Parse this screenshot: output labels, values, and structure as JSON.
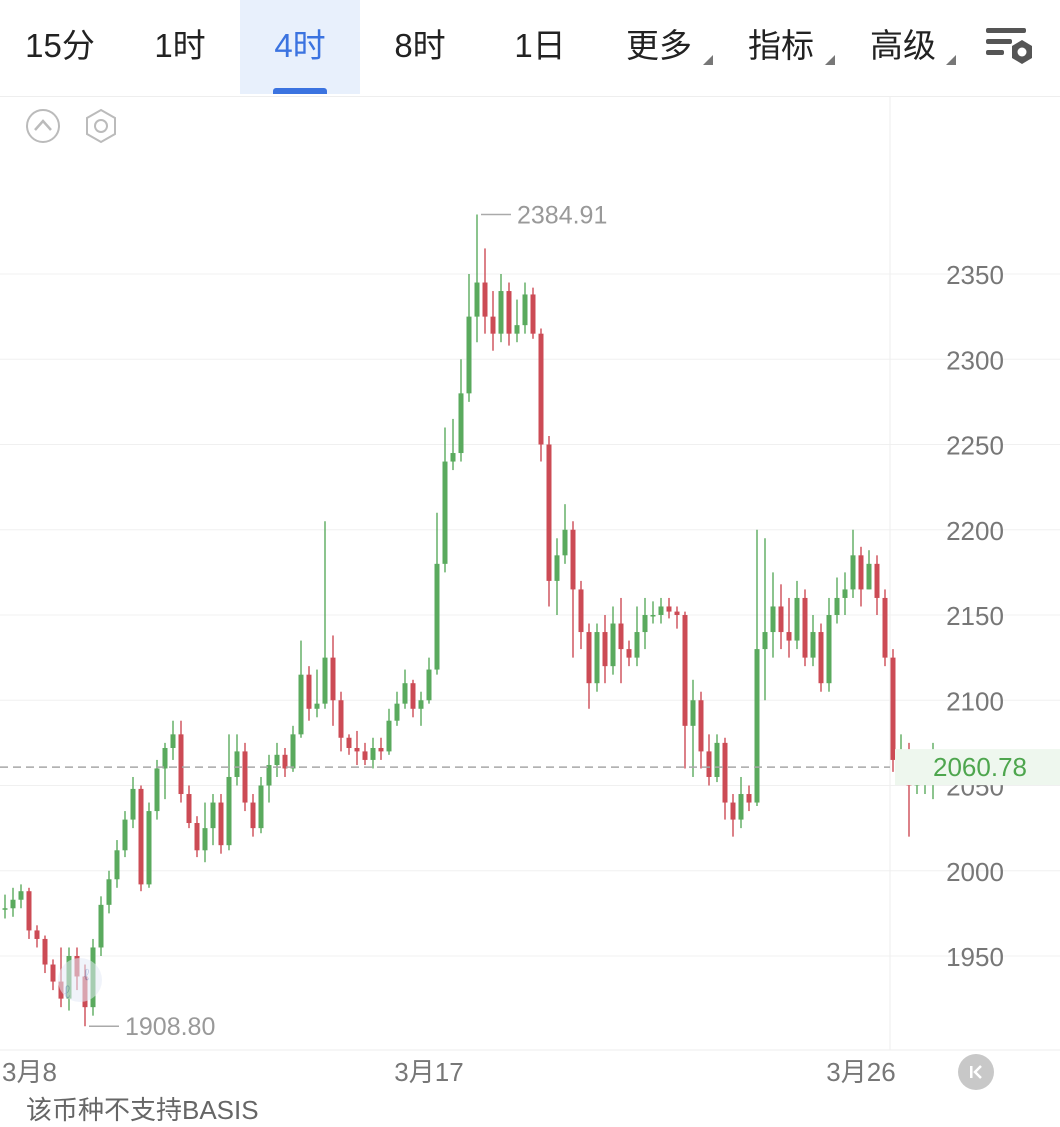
{
  "tabs": [
    {
      "label": "15分",
      "active": false
    },
    {
      "label": "1时",
      "active": false
    },
    {
      "label": "4时",
      "active": true
    },
    {
      "label": "8时",
      "active": false
    },
    {
      "label": "1日",
      "active": false
    },
    {
      "label": "更多",
      "active": false,
      "dropdown": true
    },
    {
      "label": "指标",
      "active": false,
      "dropdown": true
    },
    {
      "label": "高级",
      "active": false,
      "dropdown": true
    }
  ],
  "icons": {
    "settings": "list-settings-icon",
    "collapse": "chevron-up-circle-icon",
    "hexagon": "hexagon-settings-icon",
    "rewind": "skip-back-icon",
    "brand_mark": "watermark-logo-icon"
  },
  "colors": {
    "up": "#5aaa5e",
    "down": "#cc4b55",
    "active_tab": "#3b73e0",
    "current_price": "#4ea64e"
  },
  "bottom_text": "该币种不支持BASIS",
  "chart_data": {
    "type": "candlestick",
    "title": "",
    "interval": "4时",
    "y_ticks": [
      1950,
      2000,
      2050,
      2100,
      2150,
      2200,
      2250,
      2300,
      2350
    ],
    "x_ticks": [
      {
        "label": "3月8",
        "index": 0
      },
      {
        "label": "3月17",
        "index": 53
      },
      {
        "label": "3月26",
        "index": 107
      }
    ],
    "high_label": "2384.91",
    "low_label": "1908.80",
    "current_price": 2060.78,
    "current_price_label": "2060.78",
    "ylim": [
      1893,
      2421
    ],
    "grid": true,
    "candles": [
      [
        1978,
        1978,
        1986,
        1972
      ],
      [
        1978,
        1983,
        1990,
        1973
      ],
      [
        1983,
        1988,
        1992,
        1978
      ],
      [
        1988,
        1965,
        1990,
        1960
      ],
      [
        1965,
        1960,
        1968,
        1955
      ],
      [
        1960,
        1945,
        1962,
        1940
      ],
      [
        1945,
        1935,
        1948,
        1930
      ],
      [
        1935,
        1925,
        1955,
        1920
      ],
      [
        1925,
        1950,
        1955,
        1918
      ],
      [
        1950,
        1938,
        1955,
        1930
      ],
      [
        1938,
        1920,
        1945,
        1908.8
      ],
      [
        1920,
        1955,
        1960,
        1915
      ],
      [
        1955,
        1980,
        1985,
        1950
      ],
      [
        1980,
        1995,
        2000,
        1975
      ],
      [
        1995,
        2012,
        2018,
        1990
      ],
      [
        2012,
        2030,
        2035,
        2008
      ],
      [
        2030,
        2048,
        2055,
        2025
      ],
      [
        2048,
        1992,
        2050,
        1988
      ],
      [
        1992,
        2035,
        2040,
        1990
      ],
      [
        2035,
        2060,
        2065,
        2030
      ],
      [
        2060,
        2072,
        2075,
        2042
      ],
      [
        2072,
        2080,
        2088,
        2065
      ],
      [
        2080,
        2045,
        2088,
        2040
      ],
      [
        2045,
        2028,
        2050,
        2025
      ],
      [
        2028,
        2012,
        2032,
        2008
      ],
      [
        2012,
        2025,
        2040,
        2005
      ],
      [
        2025,
        2040,
        2045,
        2015
      ],
      [
        2040,
        2015,
        2045,
        2010
      ],
      [
        2015,
        2055,
        2080,
        2012
      ],
      [
        2055,
        2070,
        2080,
        2050
      ],
      [
        2070,
        2040,
        2075,
        2035
      ],
      [
        2040,
        2025,
        2045,
        2020
      ],
      [
        2025,
        2050,
        2055,
        2022
      ],
      [
        2050,
        2062,
        2068,
        2040
      ],
      [
        2062,
        2068,
        2075,
        2055
      ],
      [
        2068,
        2060,
        2072,
        2055
      ],
      [
        2060,
        2080,
        2085,
        2058
      ],
      [
        2080,
        2115,
        2135,
        2078
      ],
      [
        2115,
        2095,
        2120,
        2088
      ],
      [
        2095,
        2098,
        2118,
        2090
      ],
      [
        2098,
        2125,
        2205,
        2095
      ],
      [
        2125,
        2100,
        2138,
        2085
      ],
      [
        2100,
        2078,
        2105,
        2070
      ],
      [
        2078,
        2072,
        2080,
        2068
      ],
      [
        2072,
        2070,
        2082,
        2062
      ],
      [
        2070,
        2065,
        2075,
        2062
      ],
      [
        2065,
        2072,
        2078,
        2060
      ],
      [
        2072,
        2070,
        2078,
        2065
      ],
      [
        2070,
        2088,
        2095,
        2068
      ],
      [
        2088,
        2098,
        2105,
        2085
      ],
      [
        2098,
        2110,
        2118,
        2095
      ],
      [
        2110,
        2095,
        2112,
        2090
      ],
      [
        2095,
        2100,
        2105,
        2085
      ],
      [
        2100,
        2118,
        2125,
        2098
      ],
      [
        2118,
        2180,
        2210,
        2115
      ],
      [
        2180,
        2240,
        2260,
        2175
      ],
      [
        2240,
        2245,
        2265,
        2235
      ],
      [
        2245,
        2280,
        2300,
        2240
      ],
      [
        2280,
        2325,
        2350,
        2275
      ],
      [
        2325,
        2345,
        2384.91,
        2310
      ],
      [
        2345,
        2325,
        2365,
        2315
      ],
      [
        2325,
        2315,
        2340,
        2305
      ],
      [
        2315,
        2340,
        2350,
        2310
      ],
      [
        2340,
        2315,
        2345,
        2308
      ],
      [
        2315,
        2320,
        2335,
        2310
      ],
      [
        2320,
        2338,
        2345,
        2315
      ],
      [
        2338,
        2315,
        2342,
        2312
      ],
      [
        2315,
        2250,
        2318,
        2240
      ],
      [
        2250,
        2170,
        2255,
        2155
      ],
      [
        2170,
        2185,
        2195,
        2150
      ],
      [
        2185,
        2200,
        2215,
        2180
      ],
      [
        2200,
        2165,
        2205,
        2125
      ],
      [
        2165,
        2140,
        2170,
        2130
      ],
      [
        2140,
        2110,
        2145,
        2095
      ],
      [
        2110,
        2140,
        2145,
        2105
      ],
      [
        2140,
        2120,
        2150,
        2110
      ],
      [
        2120,
        2145,
        2155,
        2115
      ],
      [
        2145,
        2130,
        2160,
        2110
      ],
      [
        2130,
        2125,
        2135,
        2120
      ],
      [
        2125,
        2140,
        2155,
        2120
      ],
      [
        2140,
        2150,
        2160,
        2130
      ],
      [
        2150,
        2150,
        2158,
        2145
      ],
      [
        2150,
        2155,
        2160,
        2145
      ],
      [
        2155,
        2152,
        2160,
        2148
      ],
      [
        2152,
        2150,
        2155,
        2142
      ],
      [
        2150,
        2085,
        2152,
        2060
      ],
      [
        2085,
        2100,
        2112,
        2055
      ],
      [
        2100,
        2070,
        2105,
        2060
      ],
      [
        2070,
        2055,
        2080,
        2050
      ],
      [
        2055,
        2075,
        2080,
        2052
      ],
      [
        2075,
        2040,
        2078,
        2030
      ],
      [
        2040,
        2030,
        2045,
        2020
      ],
      [
        2030,
        2045,
        2055,
        2025
      ],
      [
        2045,
        2040,
        2050,
        2035
      ],
      [
        2040,
        2130,
        2200,
        2038
      ],
      [
        2130,
        2140,
        2195,
        2100
      ],
      [
        2140,
        2155,
        2175,
        2125
      ],
      [
        2155,
        2140,
        2168,
        2130
      ],
      [
        2140,
        2135,
        2160,
        2125
      ],
      [
        2135,
        2160,
        2170,
        2130
      ],
      [
        2160,
        2125,
        2165,
        2120
      ],
      [
        2125,
        2140,
        2150,
        2120
      ],
      [
        2140,
        2110,
        2145,
        2105
      ],
      [
        2110,
        2150,
        2160,
        2105
      ],
      [
        2150,
        2160,
        2172,
        2145
      ],
      [
        2160,
        2165,
        2175,
        2150
      ],
      [
        2165,
        2185,
        2200,
        2160
      ],
      [
        2185,
        2165,
        2190,
        2155
      ],
      [
        2165,
        2180,
        2188,
        2165
      ],
      [
        2180,
        2160,
        2185,
        2150
      ],
      [
        2160,
        2125,
        2165,
        2120
      ],
      [
        2125,
        2065,
        2130,
        2058
      ],
      [
        2065,
        2070,
        2080,
        2060
      ],
      [
        2070,
        2050,
        2075,
        2020
      ],
      [
        2050,
        2058,
        2070,
        2045
      ],
      [
        2058,
        2060,
        2068,
        2045
      ],
      [
        2060,
        2060.78,
        2075,
        2042
      ]
    ]
  }
}
